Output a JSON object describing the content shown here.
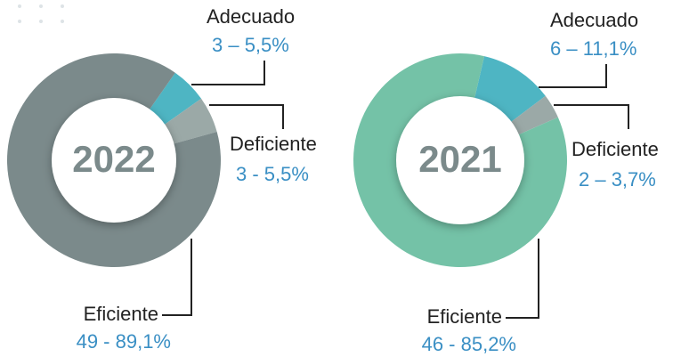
{
  "chart_data": [
    {
      "type": "pie",
      "title": "2022",
      "categories": [
        "Adecuado",
        "Deficiente",
        "Eficiente"
      ],
      "values": [
        5.5,
        5.5,
        89.1
      ],
      "value_labels": [
        "3 – 5,5%",
        "3 - 5,5%",
        "49 - 89,1%"
      ],
      "colors": [
        "#4eb5c3",
        "#9ba9a7",
        "#7b8a8b"
      ]
    },
    {
      "type": "pie",
      "title": "2021",
      "categories": [
        "Adecuado",
        "Deficiente",
        "Eficiente"
      ],
      "values": [
        11.1,
        3.7,
        85.2
      ],
      "value_labels": [
        "6 – 11,1%",
        "2 – 3,7%",
        "46 - 85,2%"
      ],
      "colors": [
        "#4eb5c3",
        "#9ba9a7",
        "#74c2a7"
      ]
    }
  ]
}
